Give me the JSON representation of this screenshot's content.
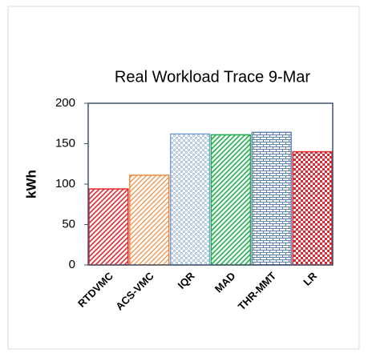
{
  "chart_data": {
    "type": "bar",
    "title": "Real Workload Trace 9-Mar",
    "y_label": "kWh",
    "categories": [
      "RTDVMC",
      "ACS-VMC",
      "IQR",
      "MAD",
      "THR-MMT",
      "LR"
    ],
    "values": [
      94,
      111,
      162,
      161,
      164,
      140
    ],
    "colors": [
      "#e3262e",
      "#ee8a3e",
      "#7ea6d2",
      "#1fae4b",
      "#5f83ad",
      "#e3262e"
    ],
    "ylim": [
      0,
      200
    ],
    "yticks": [
      0,
      50,
      100,
      150,
      200
    ],
    "grid": false
  }
}
